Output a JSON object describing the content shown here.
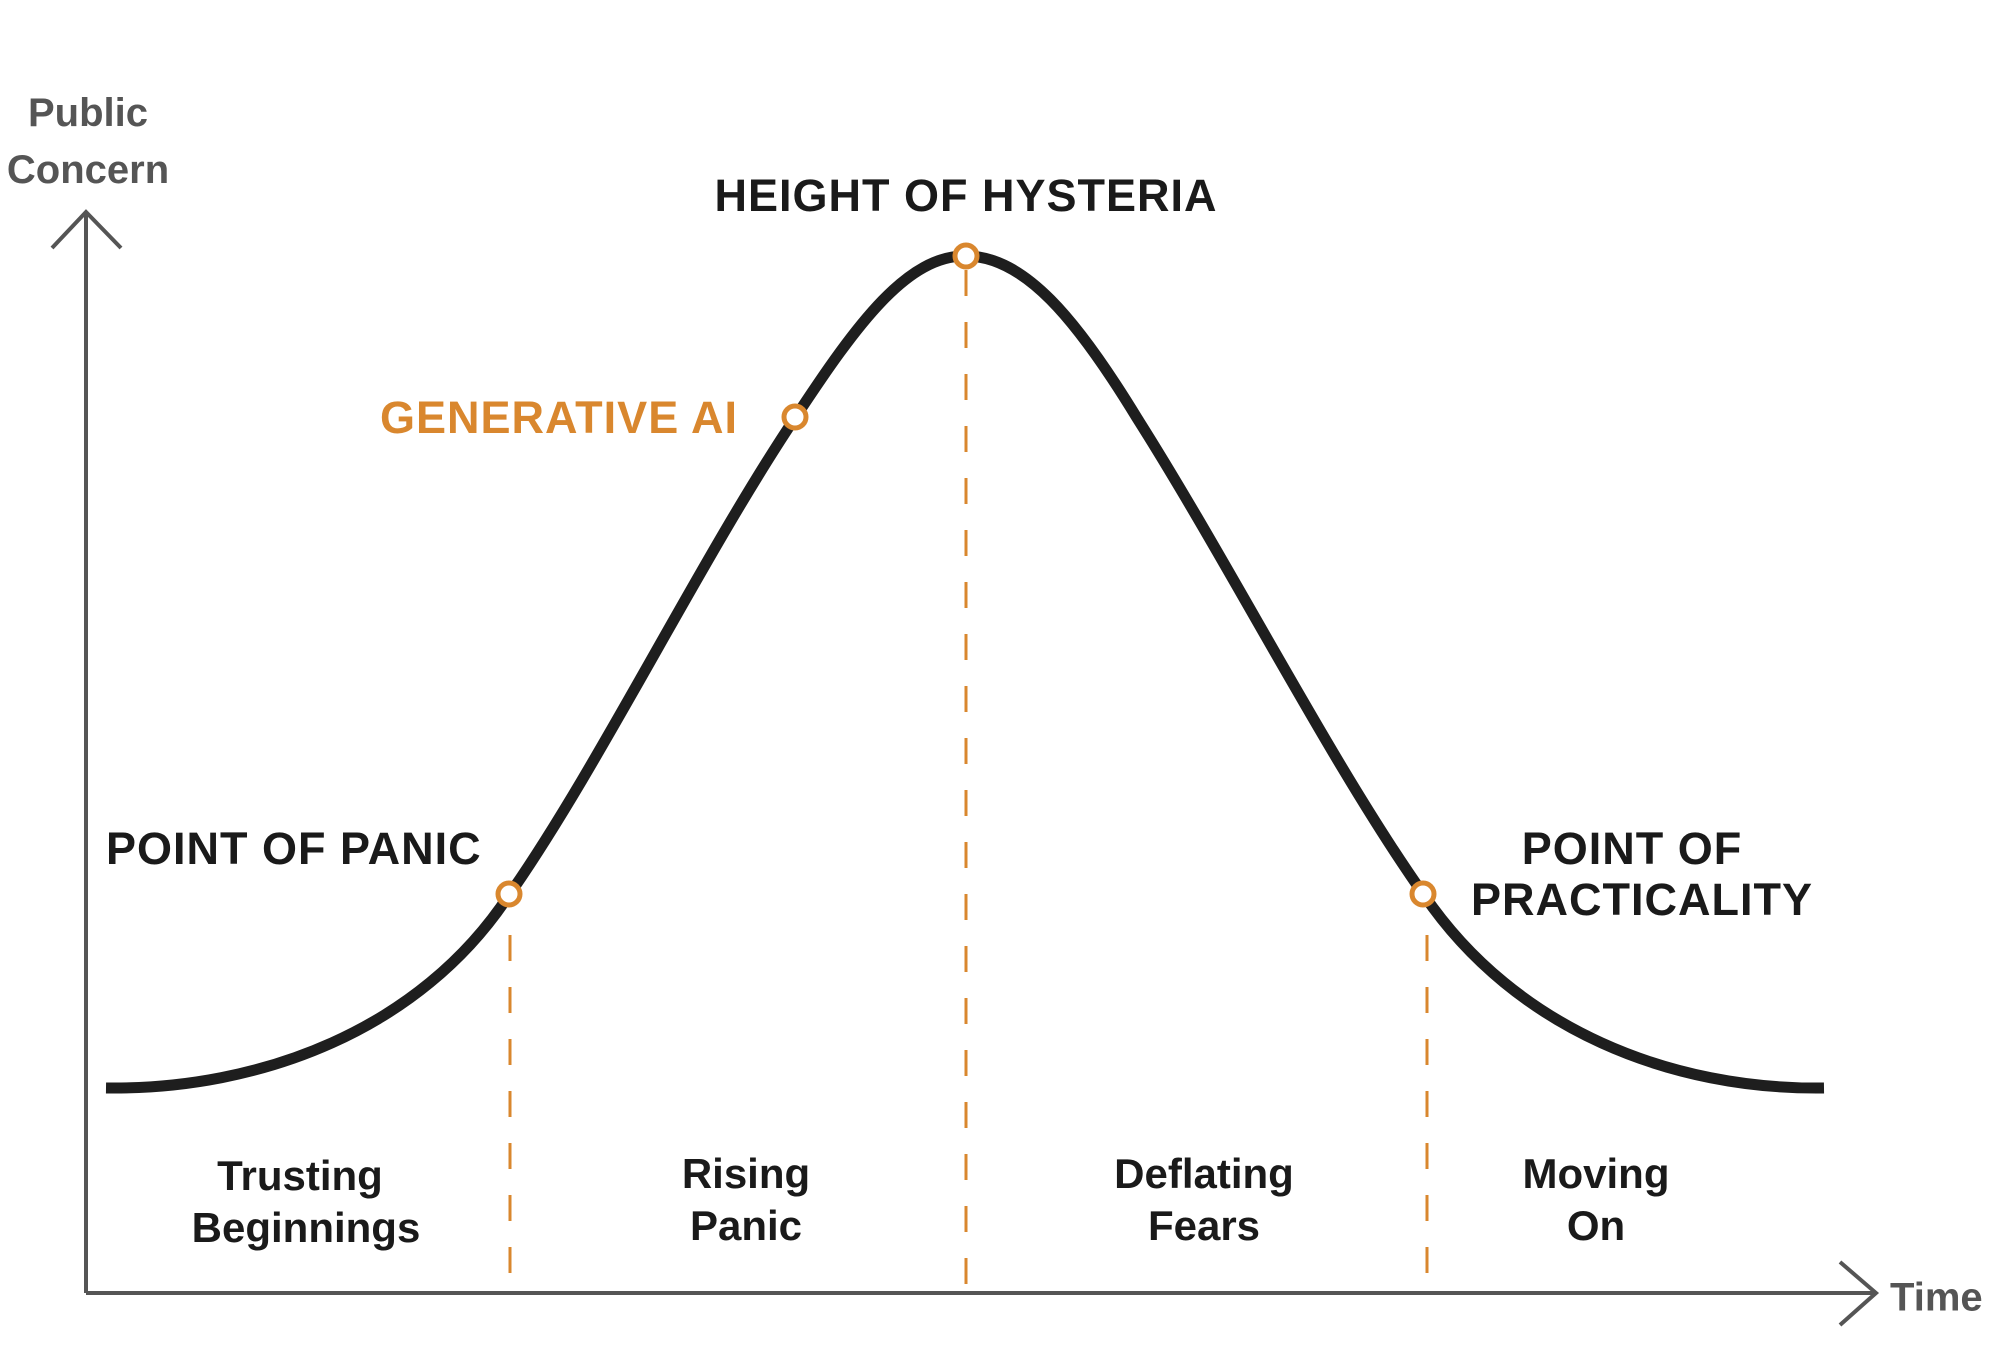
{
  "colors": {
    "accent": "#d9872e",
    "curve": "#1e1e1e",
    "axis": "#555555",
    "text": "#1a1a1a"
  },
  "axes": {
    "y_label_line1": "Public",
    "y_label_line2": "Concern",
    "x_label": "Time"
  },
  "points": {
    "panic": "POINT OF PANIC",
    "generative_ai": "GENERATIVE AI",
    "hysteria": "HEIGHT OF HYSTERIA",
    "practicality_line1": "POINT OF",
    "practicality_line2": "PRACTICALITY"
  },
  "phases": [
    {
      "line1": "Trusting",
      "line2": "Beginnings"
    },
    {
      "line1": "Rising",
      "line2": "Panic"
    },
    {
      "line1": "Deflating",
      "line2": "Fears"
    },
    {
      "line1": "Moving",
      "line2": "On"
    }
  ]
}
